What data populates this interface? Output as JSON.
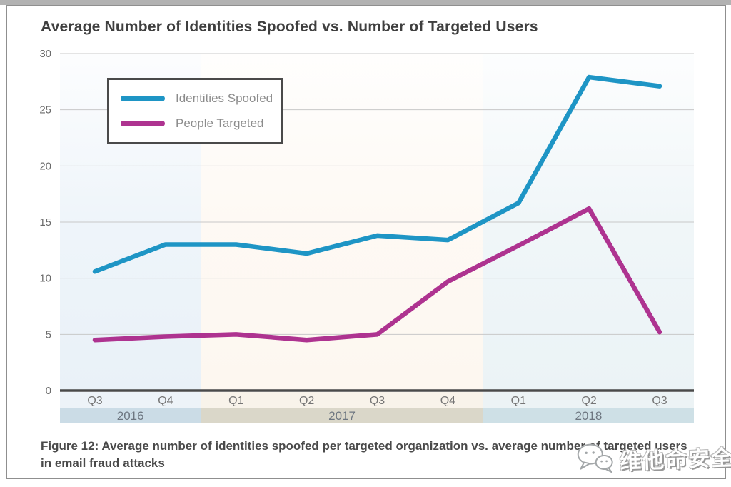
{
  "page": {
    "caption": "Figure 12: Average number of identities spoofed per targeted organization vs. average number of targeted users in email fraud attacks"
  },
  "legend": {
    "items": [
      {
        "label": "Identities Spoofed",
        "color": "#1e95c5"
      },
      {
        "label": "People Targeted",
        "color": "#ae3390"
      }
    ]
  },
  "watermark": {
    "text": "维他命安全",
    "icon": "wechat-icon"
  },
  "chart_data": {
    "type": "line",
    "title": "Average Number of Identities Spoofed vs. Number of Targeted Users",
    "xlabel": "",
    "ylabel": "",
    "categories": [
      "Q3",
      "Q4",
      "Q1",
      "Q2",
      "Q3",
      "Q4",
      "Q1",
      "Q2",
      "Q3"
    ],
    "year_groups": [
      {
        "label": "2016",
        "quarters": 2,
        "plot_band_color": "#e9f1f8",
        "quarter_band_color": "#edf3f8",
        "year_band_color": "#cbdce6"
      },
      {
        "label": "2017",
        "quarters": 4,
        "plot_band_color": "#fdf7f0",
        "quarter_band_color": "#f8f3ea",
        "year_band_color": "#dad7c9"
      },
      {
        "label": "2018",
        "quarters": 3,
        "plot_band_color": "#ebf3f6",
        "quarter_band_color": "#ecf3f5",
        "year_band_color": "#cee0e6"
      }
    ],
    "series": [
      {
        "name": "Identities Spoofed",
        "color": "#1e95c5",
        "values": [
          10.6,
          13.0,
          13.0,
          12.2,
          13.8,
          13.4,
          16.7,
          27.9,
          27.1
        ]
      },
      {
        "name": "People Targeted",
        "color": "#ae3390",
        "values": [
          4.5,
          4.8,
          5.0,
          4.5,
          5.0,
          9.7,
          12.9,
          16.2,
          5.2
        ]
      }
    ],
    "ylim": [
      0,
      30
    ],
    "yticks": [
      0,
      5,
      10,
      15,
      20,
      25,
      30
    ],
    "grid": true,
    "legend_position": "top-left",
    "axis_color": "#4a4a4a",
    "gridline_color": "#c8c8c8"
  }
}
